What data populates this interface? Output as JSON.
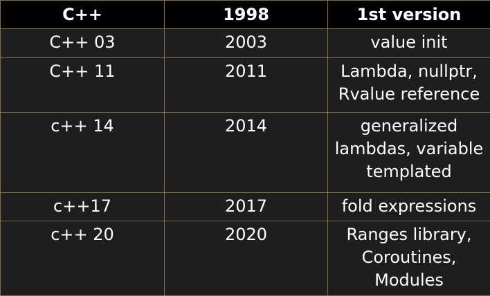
{
  "table": {
    "headers": [
      "C++",
      "1998",
      "1st version"
    ],
    "rows": [
      [
        "C++ 03",
        "2003",
        "value init"
      ],
      [
        "C++ 11",
        "2011",
        "Lambda, nullptr,\nRvalue reference"
      ],
      [
        "c++ 14",
        "2014",
        "generalized\nlambdas, variable\ntemplated"
      ],
      [
        "c++17",
        "2017",
        "fold expressions"
      ],
      [
        "c++ 20",
        "2020",
        "Ranges library,\nCoroutines,\nModules"
      ]
    ]
  },
  "colors": {
    "header_background": "#000000",
    "body_background": "#1e1e1e",
    "border": "#8a6a46",
    "text": "#ffffff"
  }
}
